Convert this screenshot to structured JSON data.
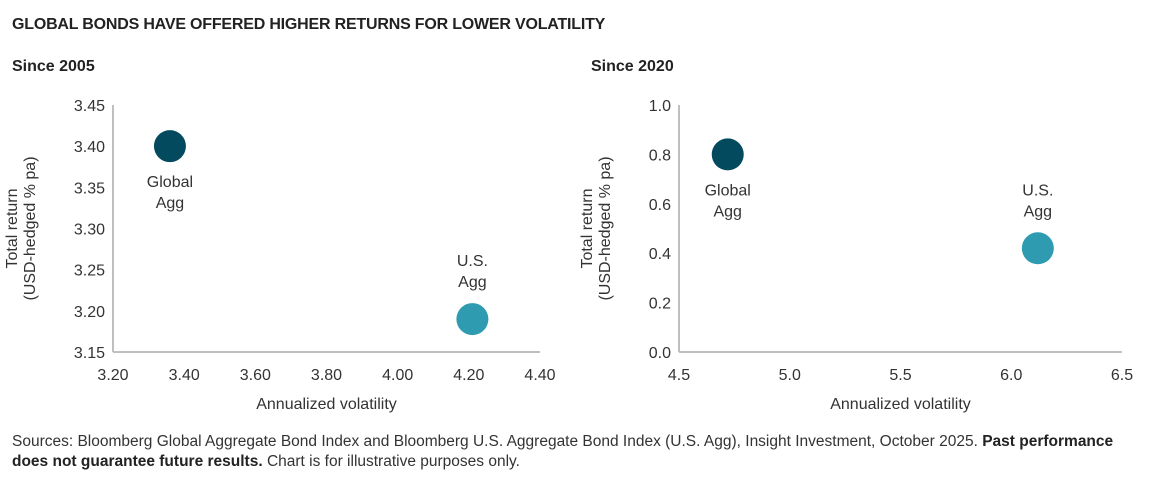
{
  "title": "GLOBAL BONDS HAVE OFFERED HIGHER RETURNS FOR LOWER VOLATILITY",
  "colors": {
    "global_agg": "#034a5f",
    "us_agg": "#2e9bb0",
    "axis": "#bfbfbf",
    "text": "#333333"
  },
  "chart_data": [
    {
      "type": "scatter",
      "subtitle": "Since 2005",
      "xlabel": "Annualized volatility",
      "ylabel": [
        "Total return",
        "(USD-hedged % pa)"
      ],
      "xlim": [
        3.2,
        4.4
      ],
      "ylim": [
        3.15,
        3.45
      ],
      "xticks": [
        "3.20",
        "3.40",
        "3.60",
        "3.80",
        "4.00",
        "4.20",
        "4.40"
      ],
      "yticks": [
        "3.15",
        "3.20",
        "3.25",
        "3.30",
        "3.35",
        "3.40",
        "3.45"
      ],
      "grid": false,
      "points": [
        {
          "label": [
            "Global",
            "Agg"
          ],
          "x": 3.36,
          "y": 3.4,
          "color": "#034a5f",
          "label_position": "below"
        },
        {
          "label": [
            "U.S.",
            "Agg"
          ],
          "x": 4.21,
          "y": 3.19,
          "color": "#2e9bb0",
          "label_position": "above"
        }
      ]
    },
    {
      "type": "scatter",
      "subtitle": "Since 2020",
      "xlabel": "Annualized volatility",
      "ylabel": [
        "Total return",
        "(USD-hedged % pa)"
      ],
      "xlim": [
        4.5,
        6.5
      ],
      "ylim": [
        0.0,
        1.0
      ],
      "xticks": [
        "4.5",
        "5.0",
        "5.5",
        "6.0",
        "6.5"
      ],
      "yticks": [
        "0.0",
        "0.2",
        "0.4",
        "0.6",
        "0.8",
        "1.0"
      ],
      "grid": false,
      "points": [
        {
          "label": [
            "Global",
            "Agg"
          ],
          "x": 4.72,
          "y": 0.8,
          "color": "#034a5f",
          "label_position": "below"
        },
        {
          "label": [
            "U.S.",
            "Agg"
          ],
          "x": 6.12,
          "y": 0.42,
          "color": "#2e9bb0",
          "label_position": "above"
        }
      ]
    }
  ],
  "source": {
    "text": "Sources: Bloomberg Global Aggregate Bond Index and Bloomberg U.S. Aggregate Bond Index (U.S. Agg), Insight Investment, October 2025. ",
    "bold": "Past performance does not guarantee future results.",
    "tail": " Chart is for illustrative purposes only."
  }
}
